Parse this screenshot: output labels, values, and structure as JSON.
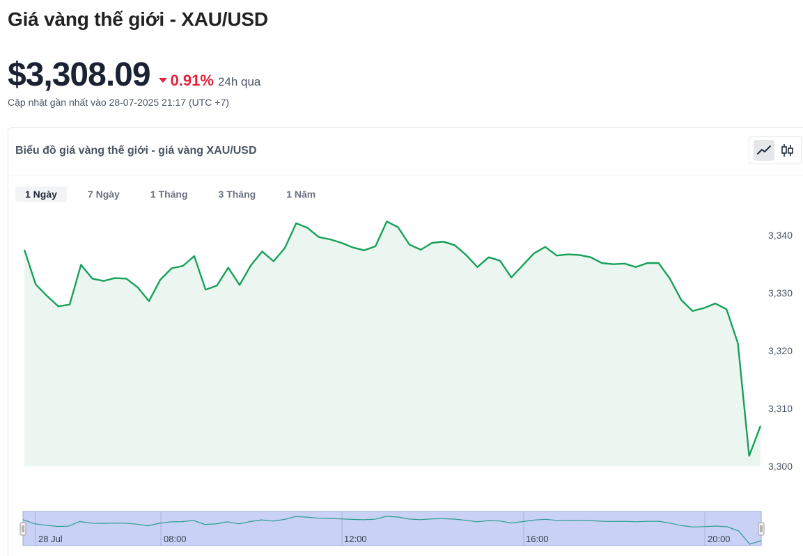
{
  "header": {
    "title": "Giá vàng thế giới - XAU/USD",
    "price": "$3,308.09",
    "change_pct": "0.91%",
    "change_period": "24h qua",
    "updated": "Cập nhật gần nhất vào 28-07-2025 21:17 (UTC +7)"
  },
  "card": {
    "title": "Biểu đồ giá vàng thế giới - giá vàng XAU/USD",
    "chart_types": [
      {
        "icon": "line-chart-icon",
        "active": true
      },
      {
        "icon": "candlestick-icon",
        "active": false
      }
    ],
    "tabs": [
      {
        "label": "1 Ngày",
        "active": true
      },
      {
        "label": "7 Ngày",
        "active": false
      },
      {
        "label": "1 Tháng",
        "active": false
      },
      {
        "label": "3 Tháng",
        "active": false
      },
      {
        "label": "1 Năm",
        "active": false
      }
    ]
  },
  "colors": {
    "line": "#16a05a",
    "area": "#eaf6ef",
    "down": "#e0243c",
    "navigator_fill": "#c9d1f5",
    "navigator_line": "#2a9d8f"
  },
  "chart_data": {
    "type": "area",
    "title": "",
    "xlabel": "",
    "ylabel": "",
    "ylim": [
      3300,
      3344
    ],
    "yticks": [
      3300,
      3310,
      3320,
      3330,
      3340
    ],
    "ytick_labels": [
      "3,300",
      "3,310",
      "3,320",
      "3,330",
      "3,340"
    ],
    "x_labels": [
      "28 Jul",
      "08:00",
      "12:00",
      "16:00",
      "20:00"
    ],
    "series": [
      {
        "values": [
          3337.5,
          3331.5,
          3329.5,
          3327.7,
          3328.0,
          3334.9,
          3332.5,
          3332.1,
          3332.6,
          3332.5,
          3331.0,
          3328.6,
          3332.3,
          3334.3,
          3334.7,
          3336.4,
          3330.6,
          3331.3,
          3334.4,
          3331.4,
          3334.8,
          3337.2,
          3335.5,
          3337.8,
          3342.1,
          3341.3,
          3339.7,
          3339.3,
          3338.7,
          3337.9,
          3337.4,
          3338.1,
          3342.4,
          3341.4,
          3338.4,
          3337.5,
          3338.7,
          3338.9,
          3338.3,
          3336.6,
          3334.5,
          3336.2,
          3335.6,
          3332.7,
          3334.8,
          3336.9,
          3338.0,
          3336.5,
          3336.7,
          3336.6,
          3336.2,
          3335.2,
          3335.0,
          3335.1,
          3334.5,
          3335.2,
          3335.2,
          3332.5,
          3328.8,
          3326.9,
          3327.4,
          3328.2,
          3327.2,
          3321.3,
          3301.8,
          3307.0
        ]
      }
    ]
  }
}
